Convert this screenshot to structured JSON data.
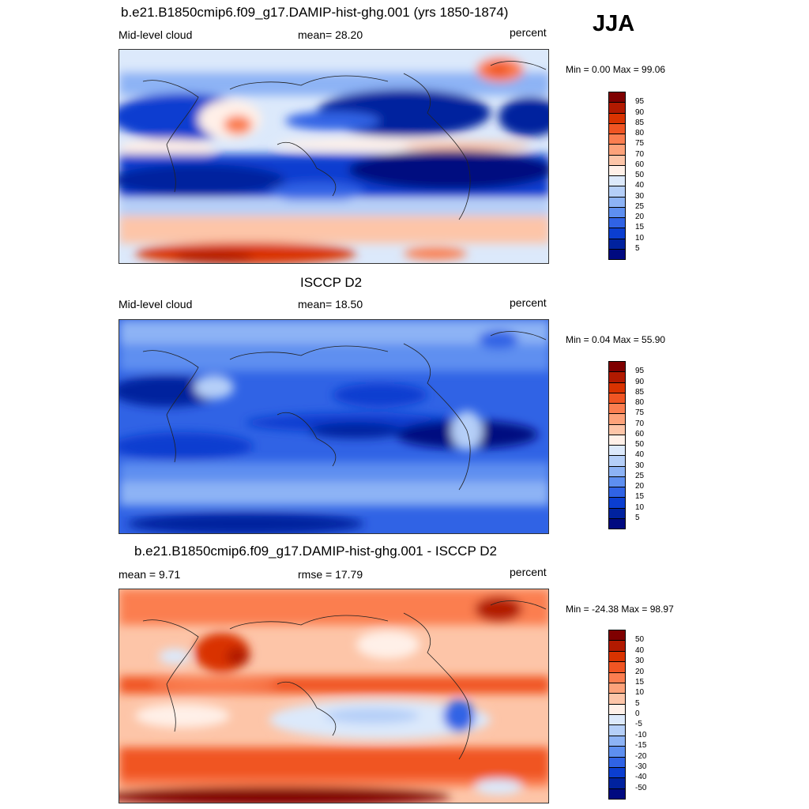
{
  "season": "JJA",
  "panels": [
    {
      "title": "b.e21.B1850cmip6.f09_g17.DAMIP-hist-ghg.001 (yrs 1850-1874)",
      "left": "Mid-level cloud",
      "center": "mean=  28.20",
      "right": "percent",
      "minmax": "Min =   0.00 Max =  99.06",
      "levels": [
        "95",
        "90",
        "85",
        "80",
        "75",
        "70",
        "60",
        "50",
        "40",
        "30",
        "25",
        "20",
        "15",
        "10",
        "5"
      ]
    },
    {
      "title": "ISCCP D2",
      "left": "Mid-level cloud",
      "center": "mean=  18.50",
      "right": "percent",
      "minmax": "Min =   0.04 Max =  55.90",
      "levels": [
        "95",
        "90",
        "85",
        "80",
        "75",
        "70",
        "60",
        "50",
        "40",
        "30",
        "25",
        "20",
        "15",
        "10",
        "5"
      ]
    },
    {
      "title": "b.e21.B1850cmip6.f09_g17.DAMIP-hist-ghg.001 - ISCCP D2",
      "left": "mean =   9.71",
      "center": "rmse =  17.79",
      "right": "percent",
      "minmax": "Min = -24.38 Max =  98.97",
      "levels": [
        "50",
        "40",
        "30",
        "20",
        "15",
        "10",
        "5",
        "0",
        "-5",
        "-10",
        "-15",
        "-20",
        "-30",
        "-40",
        "-50"
      ]
    }
  ],
  "colors": {
    "palette": [
      "#7f0000",
      "#b21a00",
      "#d93300",
      "#f05523",
      "#fb7e50",
      "#fda27a",
      "#fdc5a8",
      "#fff0e8",
      "#dce9fb",
      "#b5cff8",
      "#8db3f5",
      "#5e8ff0",
      "#3063e5",
      "#0b3ed0",
      "#00229e",
      "#000a80"
    ]
  }
}
